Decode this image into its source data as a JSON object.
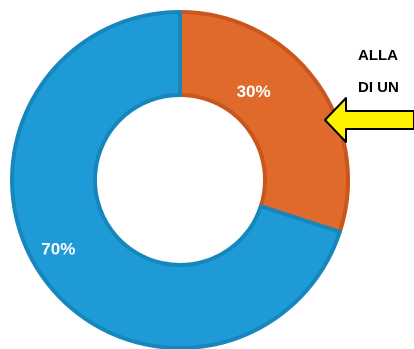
{
  "chart_data": {
    "type": "pie",
    "donut": true,
    "slices": [
      {
        "value": 30,
        "label": "30%",
        "color": "#E06A2C",
        "border": "#C9561C"
      },
      {
        "value": 70,
        "label": "70%",
        "color": "#1E9BD7",
        "border": "#1686BD"
      }
    ],
    "start_angle_deg": 0,
    "direction": "clockwise",
    "legend": "none",
    "title": ""
  },
  "callout": {
    "lines": [
      "ALLA",
      "DI UN"
    ],
    "arrow_color": "#FFF200",
    "arrow_outline": "#000000",
    "points_to": "30%"
  }
}
